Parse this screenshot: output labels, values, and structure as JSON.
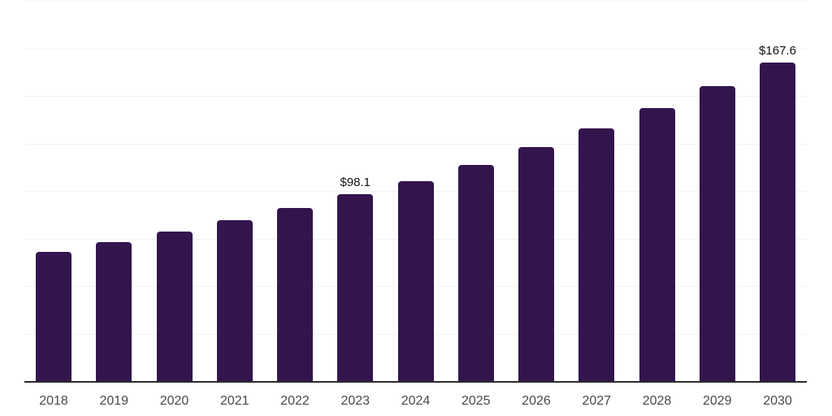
{
  "chart_data": {
    "type": "bar",
    "title": "",
    "xlabel": "",
    "ylabel": "",
    "categories": [
      "2018",
      "2019",
      "2020",
      "2021",
      "2022",
      "2023",
      "2024",
      "2025",
      "2026",
      "2027",
      "2028",
      "2029",
      "2030"
    ],
    "values": [
      68.0,
      73.2,
      78.7,
      84.7,
      91.1,
      98.1,
      105.3,
      113.5,
      123.0,
      132.9,
      143.5,
      155.0,
      167.6
    ],
    "data_labels": [
      "",
      "",
      "",
      "",
      "",
      "$98.1",
      "",
      "",
      "",
      "",
      "",
      "",
      "$167.6"
    ],
    "value_prefix": "$",
    "ylim": [
      0,
      200
    ],
    "gridline_step": 25,
    "grid": true,
    "legend_position": "none",
    "colors": {
      "bar": "#33154d",
      "axis_line": "#2b2b2b",
      "gridline": "#f2f2f2",
      "tick_label": "#4a4a4a",
      "data_label": "#111111",
      "background": "#ffffff"
    }
  }
}
